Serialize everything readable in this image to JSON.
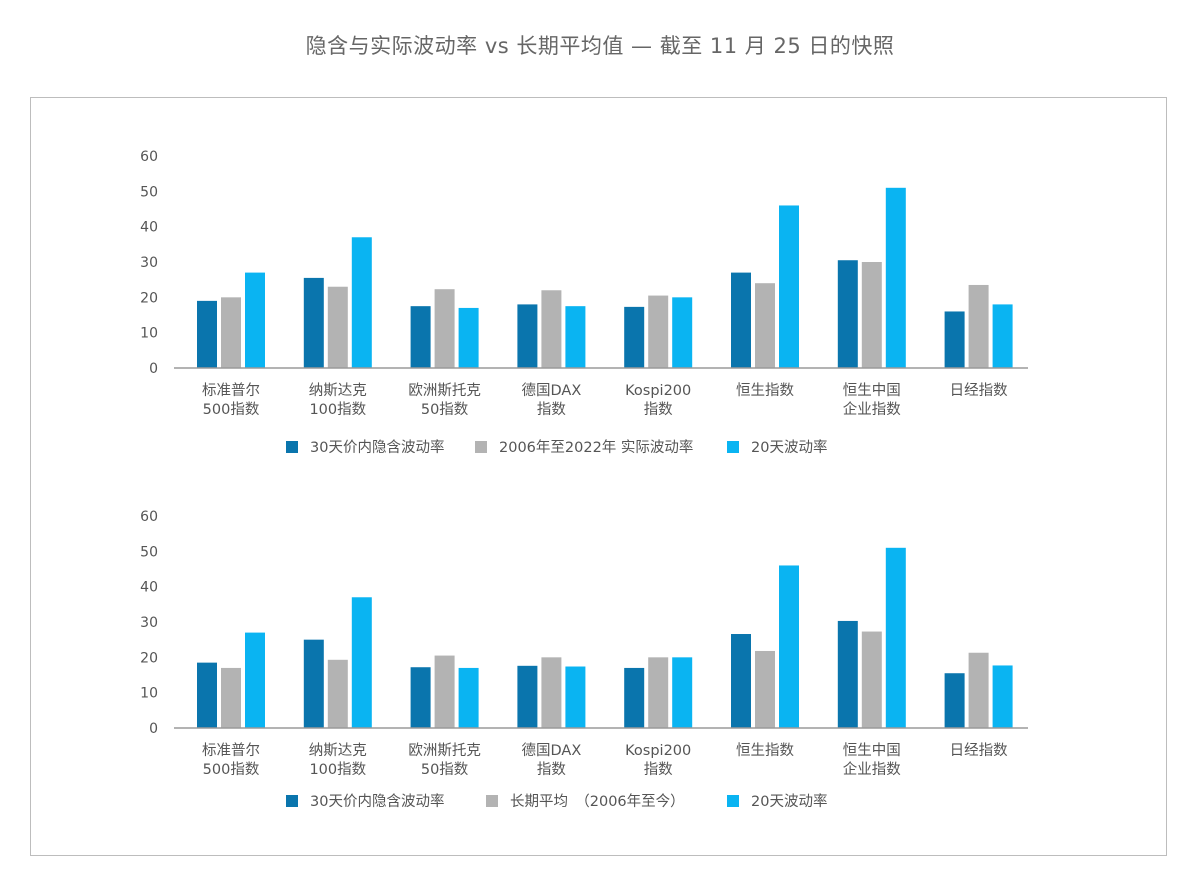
{
  "title": "隐含与实际波动率 vs 长期平均值 — 截至 11 月 25 日的快照",
  "colors": {
    "implied": "#0a75ad",
    "average": "#b3b3b3",
    "realized": "#0ab4f2"
  },
  "chart_data": [
    {
      "type": "bar",
      "categories": [
        [
          "标准普尔",
          "500指数"
        ],
        [
          "纳斯达克",
          "100指数"
        ],
        [
          "欧洲斯托克",
          "50指数"
        ],
        [
          "德国DAX",
          "指数"
        ],
        [
          "Kospi200",
          "指数"
        ],
        [
          "恒生指数"
        ],
        [
          "恒生中国",
          "企业指数"
        ],
        [
          "日经指数"
        ]
      ],
      "yticks": [
        "0",
        "10",
        "20",
        "30",
        "40",
        "50",
        "60"
      ],
      "ylim": [
        0,
        60
      ],
      "legend_position": "bottom",
      "series": [
        {
          "name": "30天价内隐含波动率",
          "values": [
            19,
            25.5,
            17.5,
            18,
            17.3,
            27,
            30.5,
            16
          ]
        },
        {
          "name": "2006年至2022年 实际波动率",
          "values": [
            20,
            23,
            22.3,
            22,
            20.5,
            24,
            30,
            23.5
          ]
        },
        {
          "name": "20天波动率",
          "values": [
            27,
            37,
            17,
            17.5,
            20,
            46,
            51,
            18
          ]
        }
      ]
    },
    {
      "type": "bar",
      "categories": [
        [
          "标准普尔",
          "500指数"
        ],
        [
          "纳斯达克",
          "100指数"
        ],
        [
          "欧洲斯托克",
          "50指数"
        ],
        [
          "德国DAX",
          "指数"
        ],
        [
          "Kospi200",
          "指数"
        ],
        [
          "恒生指数"
        ],
        [
          "恒生中国",
          "企业指数"
        ],
        [
          "日经指数"
        ]
      ],
      "yticks": [
        "0",
        "10",
        "20",
        "30",
        "40",
        "50",
        "60"
      ],
      "ylim": [
        0,
        60
      ],
      "legend_position": "bottom",
      "series": [
        {
          "name": "30天价内隐含波动率",
          "values": [
            18.5,
            25,
            17.2,
            17.6,
            17,
            26.6,
            30.3,
            15.5
          ]
        },
        {
          "name": "长期平均　（2006年至今）",
          "values": [
            17,
            19.3,
            20.5,
            20,
            20,
            21.8,
            27.3,
            21.3
          ]
        },
        {
          "name": "20天波动率",
          "values": [
            27,
            37,
            17,
            17.4,
            20,
            46,
            51,
            17.7
          ]
        }
      ]
    }
  ]
}
